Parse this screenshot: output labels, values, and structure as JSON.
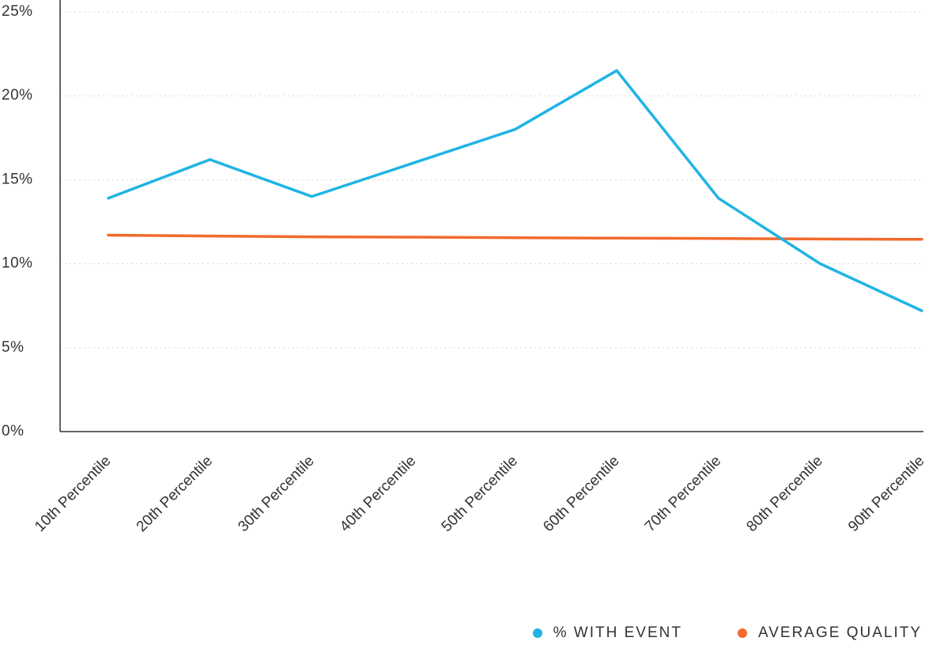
{
  "chart_data": {
    "type": "line",
    "categories": [
      "10th Percentile",
      "20th Percentile",
      "30th Percentile",
      "40th Percentile",
      "50th Percentile",
      "60th Percentile",
      "70th Percentile",
      "80th Percentile",
      "90th Percentile"
    ],
    "series": [
      {
        "name": "% WITH EVENT",
        "color": "#1fb4e4",
        "values": [
          13.9,
          16.2,
          14.0,
          16.0,
          18.0,
          21.5,
          13.9,
          10.0,
          7.2
        ]
      },
      {
        "name": "AVERAGE QUALITY",
        "color": "#f26a2e",
        "values": [
          11.7,
          11.65,
          11.6,
          11.58,
          11.55,
          11.52,
          11.5,
          11.47,
          11.45
        ]
      }
    ],
    "y_ticks": [
      "0%",
      "5%",
      "10%",
      "15%",
      "20%",
      "25%"
    ],
    "ylim": [
      0,
      25
    ],
    "grid": true,
    "legend_position": "bottom-right"
  }
}
